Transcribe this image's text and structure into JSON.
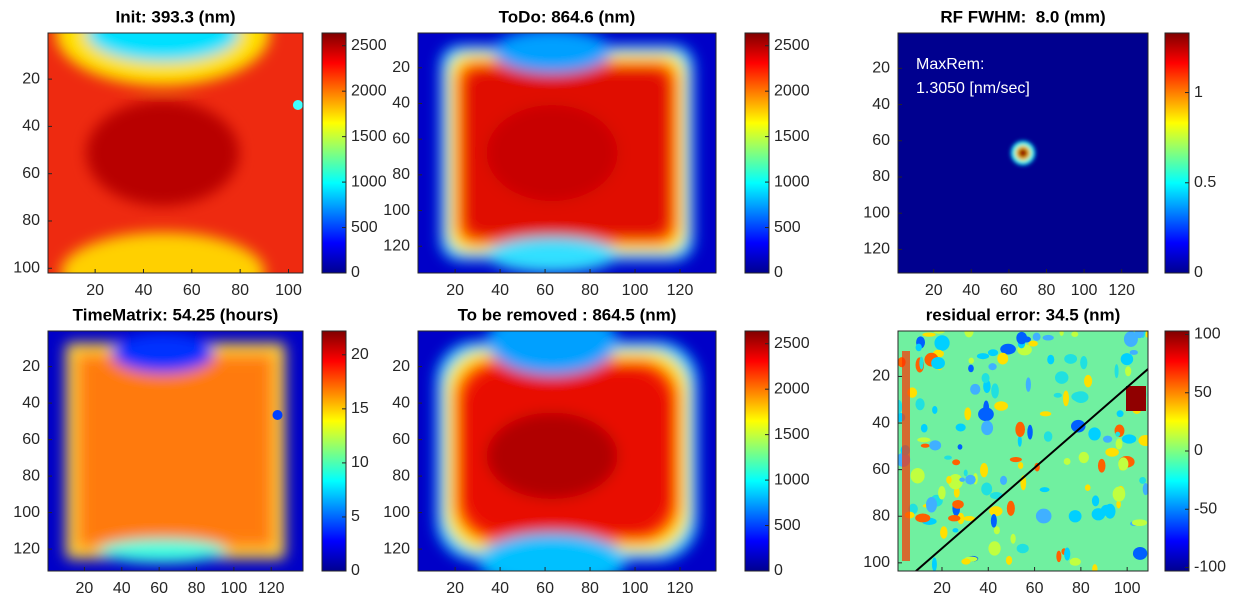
{
  "chart_data": [
    {
      "type": "heatmap",
      "title": "Init: 393.3 (nm)",
      "xlim": [
        0.5,
        106
      ],
      "xticks": [
        20,
        40,
        60,
        80,
        100
      ],
      "ylim": [
        0.5,
        102
      ],
      "yticks": [
        20,
        40,
        60,
        80,
        100
      ],
      "colorbar": {
        "lim": [
          0,
          2640
        ],
        "ticks": [
          0,
          500,
          1000,
          1500,
          2000,
          2500
        ]
      }
    },
    {
      "type": "heatmap",
      "title": "ToDo: 864.6 (nm)",
      "xlim": [
        3.5,
        136
      ],
      "xticks": [
        20,
        40,
        60,
        80,
        100,
        120
      ],
      "ylim": [
        0.5,
        135
      ],
      "yticks": [
        20,
        40,
        60,
        80,
        100,
        120
      ],
      "colorbar": {
        "lim": [
          0,
          2640
        ],
        "ticks": [
          0,
          500,
          1000,
          1500,
          2000,
          2500
        ]
      }
    },
    {
      "type": "heatmap",
      "title": "RF FWHM:  8.0 (mm)",
      "xlim": [
        1,
        134
      ],
      "xticks": [
        20,
        40,
        60,
        80,
        100,
        120
      ],
      "ylim": [
        0.5,
        133
      ],
      "yticks": [
        20,
        40,
        60,
        80,
        100,
        120
      ],
      "colorbar": {
        "lim": [
          0,
          1.33
        ],
        "ticks": [
          0,
          0.5,
          1
        ]
      },
      "annotations": [
        "MaxRem:",
        "1.3050 [nm/sec]"
      ]
    },
    {
      "type": "heatmap",
      "title": "TimeMatrix: 54.25 (hours)",
      "xlim": [
        0.5,
        137
      ],
      "xticks": [
        20,
        40,
        60,
        80,
        100,
        120
      ],
      "ylim": [
        0.5,
        132
      ],
      "yticks": [
        20,
        40,
        60,
        80,
        100,
        120
      ],
      "colorbar": {
        "lim": [
          0,
          22.2
        ],
        "ticks": [
          0,
          5,
          10,
          15,
          20
        ]
      }
    },
    {
      "type": "heatmap",
      "title": "To be removed : 864.5 (nm)",
      "xlim": [
        3.5,
        136
      ],
      "xticks": [
        20,
        40,
        60,
        80,
        100,
        120
      ],
      "ylim": [
        0.5,
        132
      ],
      "yticks": [
        20,
        40,
        60,
        80,
        100,
        120
      ],
      "colorbar": {
        "lim": [
          0,
          2640
        ],
        "ticks": [
          0,
          500,
          1000,
          1500,
          2000,
          2500
        ]
      }
    },
    {
      "type": "heatmap",
      "title": "residual error: 34.5 (nm)",
      "xlim": [
        1,
        109
      ],
      "xticks": [
        20,
        40,
        60,
        80,
        100
      ],
      "ylim": [
        0.5,
        103.5
      ],
      "yticks": [
        20,
        40,
        60,
        80,
        100
      ],
      "colorbar": {
        "lim": [
          -103,
          103
        ],
        "ticks": [
          -100,
          -50,
          0,
          50,
          100
        ]
      }
    }
  ]
}
